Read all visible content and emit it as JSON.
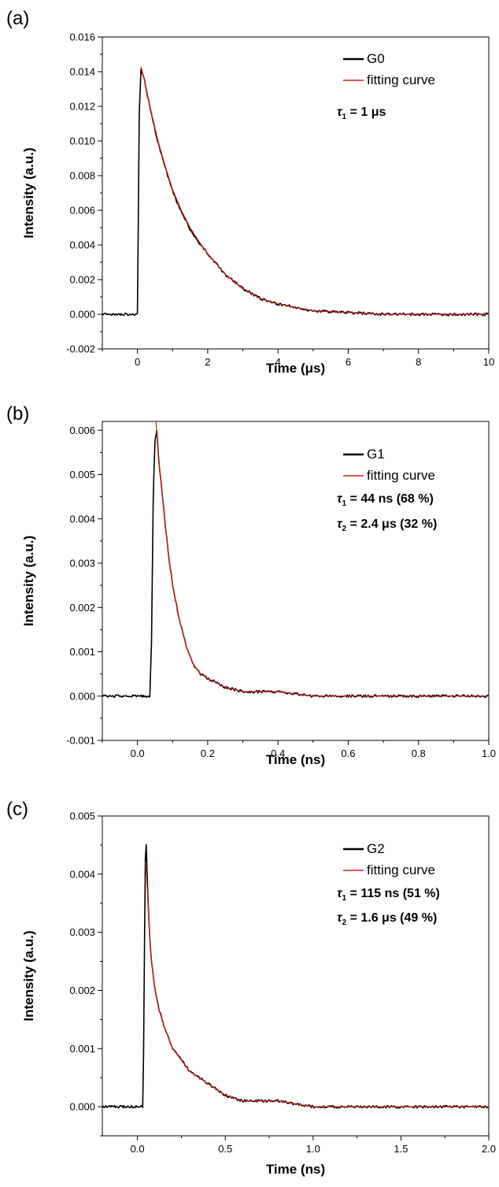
{
  "chart_data": [
    {
      "type": "line",
      "panel_label": "(a)",
      "xlabel": "Time (μs)",
      "ylabel": "Intensity (a.u.)",
      "xlim": [
        -1,
        10
      ],
      "ylim": [
        -0.002,
        0.016
      ],
      "xticks": [
        0,
        2,
        4,
        6,
        8,
        10
      ],
      "xtick_labels": [
        "0",
        "2",
        "4",
        "6",
        "8",
        "10"
      ],
      "yticks": [
        -0.002,
        0,
        0.002,
        0.004,
        0.006,
        0.008,
        0.01,
        0.012,
        0.014,
        0.016
      ],
      "ytick_labels": [
        "-0.002",
        "0.000",
        "0.002",
        "0.004",
        "0.006",
        "0.008",
        "0.010",
        "0.012",
        "0.014",
        "0.016"
      ],
      "grid": false,
      "legend_position": "top-right",
      "series": [
        {
          "name": "G0",
          "color": "#000000",
          "kind": "measured",
          "x": [
            -1,
            0,
            0.05,
            0.1,
            0.2,
            0.4,
            0.6,
            0.8,
            1,
            1.25,
            1.5,
            1.75,
            2,
            2.5,
            3,
            3.5,
            4,
            5,
            6,
            7,
            8,
            9,
            10
          ],
          "y": [
            0,
            0,
            0.0115,
            0.0142,
            0.0135,
            0.0115,
            0.0098,
            0.0084,
            0.0071,
            0.0059,
            0.0049,
            0.0041,
            0.0035,
            0.0023,
            0.0015,
            0.0009,
            0.0006,
            0.0002,
            0.0001,
            0,
            0,
            0,
            0
          ]
        },
        {
          "name": "fitting curve",
          "color": "#d42020",
          "kind": "fit",
          "x": [
            0.1,
            0.2,
            0.4,
            0.6,
            0.8,
            1,
            1.25,
            1.5,
            1.75,
            2,
            2.5,
            3,
            3.5,
            4,
            5,
            6,
            7,
            8,
            9,
            10
          ],
          "y": [
            0.0143,
            0.0135,
            0.0116,
            0.0099,
            0.0085,
            0.0072,
            0.006,
            0.005,
            0.0042,
            0.0035,
            0.0023,
            0.0015,
            0.0009,
            0.0006,
            0.0002,
            0.0001,
            0,
            0,
            0,
            0
          ]
        }
      ],
      "legend": [
        "G0",
        "fitting curve"
      ],
      "annotations": [
        {
          "symbol": "τ",
          "sub": "1",
          "text": " = 1 μs"
        }
      ]
    },
    {
      "type": "line",
      "panel_label": "(b)",
      "xlabel": "Time (ns)",
      "ylabel": "Intensity (a.u.)",
      "xlim": [
        -0.1,
        1.0
      ],
      "ylim": [
        -0.001,
        0.0062
      ],
      "xticks": [
        0,
        0.2,
        0.4,
        0.6,
        0.8,
        1.0
      ],
      "xtick_labels": [
        "0.0",
        "0.2",
        "0.4",
        "0.6",
        "0.8",
        "1.0"
      ],
      "yticks": [
        -0.001,
        0,
        0.001,
        0.002,
        0.003,
        0.004,
        0.005,
        0.006
      ],
      "ytick_labels": [
        "-0.001",
        "0.000",
        "0.001",
        "0.002",
        "0.003",
        "0.004",
        "0.005",
        "0.006"
      ],
      "grid": false,
      "legend_position": "top-right",
      "series": [
        {
          "name": "G1",
          "color": "#000000",
          "kind": "measured",
          "x": [
            -0.1,
            0.035,
            0.04,
            0.045,
            0.05,
            0.055,
            0.06,
            0.07,
            0.08,
            0.09,
            0.1,
            0.12,
            0.14,
            0.16,
            0.18,
            0.2,
            0.25,
            0.3,
            0.4,
            0.5,
            0.6,
            0.7,
            0.8,
            0.9,
            1.0
          ],
          "y": [
            0,
            0,
            0.0012,
            0.0045,
            0.0058,
            0.006,
            0.0054,
            0.0046,
            0.0038,
            0.0031,
            0.0025,
            0.0017,
            0.0011,
            0.0007,
            0.0005,
            0.0004,
            0.0002,
            0.0001,
            0.0001,
            0,
            0,
            0,
            0,
            0,
            0
          ]
        },
        {
          "name": "fitting curve",
          "color": "#d42020",
          "kind": "fit",
          "x": [
            0.053,
            0.055,
            0.06,
            0.07,
            0.08,
            0.09,
            0.1,
            0.12,
            0.14,
            0.16,
            0.18,
            0.2,
            0.25,
            0.3,
            0.4,
            0.5,
            0.6,
            0.7,
            0.8,
            0.9,
            1.0
          ],
          "y": [
            0.0062,
            0.0059,
            0.0054,
            0.0046,
            0.0038,
            0.0031,
            0.0025,
            0.0017,
            0.0011,
            0.0007,
            0.0005,
            0.0004,
            0.0002,
            0.0001,
            0.0001,
            0,
            0,
            0,
            0,
            0,
            0
          ]
        }
      ],
      "legend": [
        "G1",
        "fitting curve"
      ],
      "annotations": [
        {
          "symbol": "τ",
          "sub": "1",
          "text": " = 44 ns (68 %)"
        },
        {
          "symbol": "τ",
          "sub": "2",
          "text": " = 2.4 μs (32 %)"
        }
      ]
    },
    {
      "type": "line",
      "panel_label": "(c)",
      "xlabel": "Time (ns)",
      "ylabel": "Intensity (a.u.)",
      "xlim": [
        -0.2,
        2.0
      ],
      "ylim": [
        -0.0005,
        0.005
      ],
      "xticks": [
        0,
        0.5,
        1.0,
        1.5,
        2.0
      ],
      "xtick_labels": [
        "0.0",
        "0.5",
        "1.0",
        "1.5",
        "2.0"
      ],
      "yticks": [
        0,
        0.001,
        0.002,
        0.003,
        0.004,
        0.005
      ],
      "ytick_labels": [
        "0.000",
        "0.001",
        "0.002",
        "0.003",
        "0.004",
        "0.005"
      ],
      "grid": false,
      "legend_position": "top-right",
      "series": [
        {
          "name": "G2",
          "color": "#000000",
          "kind": "measured",
          "x": [
            -0.2,
            0.03,
            0.035,
            0.04,
            0.045,
            0.05,
            0.06,
            0.07,
            0.08,
            0.1,
            0.12,
            0.15,
            0.2,
            0.25,
            0.3,
            0.35,
            0.4,
            0.5,
            0.6,
            0.8,
            1.0,
            1.2,
            1.5,
            2.0
          ],
          "y": [
            0,
            0,
            0.0009,
            0.0028,
            0.0043,
            0.0045,
            0.0036,
            0.0029,
            0.0025,
            0.002,
            0.0017,
            0.0014,
            0.001,
            0.0008,
            0.0006,
            0.0005,
            0.0004,
            0.0002,
            0.0001,
            0.0001,
            0,
            0,
            0,
            0
          ]
        },
        {
          "name": "fitting curve",
          "color": "#d42020",
          "kind": "fit",
          "x": [
            0.048,
            0.05,
            0.06,
            0.07,
            0.08,
            0.1,
            0.12,
            0.15,
            0.2,
            0.25,
            0.3,
            0.35,
            0.4,
            0.5,
            0.6,
            0.8,
            1.0,
            1.2,
            1.5,
            2.0
          ],
          "y": [
            0.0042,
            0.0041,
            0.0035,
            0.0029,
            0.0025,
            0.002,
            0.0017,
            0.0014,
            0.001,
            0.0008,
            0.0006,
            0.0005,
            0.0004,
            0.0002,
            0.0001,
            0.0001,
            0,
            0,
            0,
            0
          ]
        }
      ],
      "legend": [
        "G2",
        "fitting curve"
      ],
      "annotations": [
        {
          "symbol": "τ",
          "sub": "1",
          "text": " = 115 ns (51 %)"
        },
        {
          "symbol": "τ",
          "sub": "2",
          "text": " = 1.6 μs (49 %)"
        }
      ]
    }
  ]
}
